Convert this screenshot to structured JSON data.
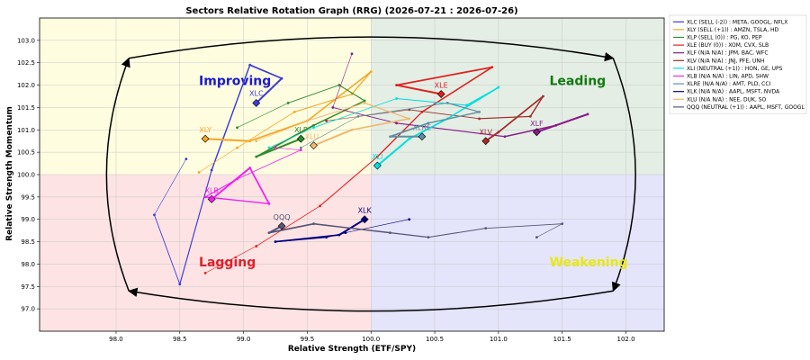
{
  "chart_data": {
    "type": "scatter",
    "title": "Sectors Relative Rotation Graph (RRG) (2026-07-21 : 2026-07-26)",
    "xlabel": "Relative Strength (ETF/SPY)",
    "ylabel": "Relative Strength Momentum",
    "xlim": [
      97.4,
      102.3
    ],
    "ylim": [
      96.5,
      103.5
    ],
    "x_ticks": [
      "98.0",
      "98.5",
      "99.0",
      "99.5",
      "100.0",
      "100.5",
      "101.0",
      "101.5",
      "102.0"
    ],
    "y_ticks": [
      "97.0",
      "97.5",
      "98.0",
      "98.5",
      "99.0",
      "99.5",
      "100.0",
      "100.5",
      "101.0",
      "101.5",
      "102.0",
      "102.5",
      "103.0"
    ],
    "grid": "on",
    "legend_position": "outside-right",
    "quadrants": [
      {
        "name": "Improving",
        "color": "#1a1acc",
        "bg": "#fefde0"
      },
      {
        "name": "Leading",
        "color": "#127a12",
        "bg": "#e4eee4"
      },
      {
        "name": "Lagging",
        "color": "#e0202a",
        "bg": "#fde3e3"
      },
      {
        "name": "Weakening",
        "color": "#e8e810",
        "bg": "#e4e4fb"
      }
    ],
    "series": [
      {
        "name": "XLC (SELL (-2)) : META, GOOGL, NFLX",
        "ticker": "XLC",
        "color": "#3b3bd9",
        "x": [
          98.55,
          98.3,
          98.5,
          98.75,
          99.05,
          99.3,
          99.1
        ],
        "y": [
          100.35,
          99.1,
          97.55,
          100.1,
          102.45,
          102.15,
          101.6
        ]
      },
      {
        "name": "XLY (SELL (+1)) : AMZN, TSLA, HD",
        "ticker": "XLY",
        "color": "#f5a623",
        "x": [
          98.65,
          98.95,
          99.4,
          99.85,
          100.0,
          99.5,
          99.05,
          98.7
        ],
        "y": [
          100.05,
          100.6,
          101.4,
          101.8,
          102.3,
          101.2,
          100.75,
          100.8
        ]
      },
      {
        "name": "XLP (SELL (0)) : PG, KO, PEP",
        "ticker": "XLP",
        "color": "#2e8b2e",
        "x": [
          98.95,
          99.35,
          99.75,
          99.95,
          99.55,
          99.1,
          99.45
        ],
        "y": [
          101.05,
          101.6,
          102.0,
          101.65,
          101.1,
          100.4,
          100.8
        ]
      },
      {
        "name": "XLE (BUY (0)) : XOM, CVX, SLB",
        "ticker": "XLE",
        "color": "#e02020",
        "x": [
          98.7,
          99.1,
          99.6,
          100.05,
          100.4,
          100.95,
          100.2,
          100.55
        ],
        "y": [
          97.8,
          98.4,
          99.3,
          100.4,
          101.4,
          102.4,
          102.0,
          101.8
        ]
      },
      {
        "name": "XLF (N/A N/A) : JPM, BAC, WFC",
        "ticker": "XLF",
        "color": "#8a1a8a",
        "x": [
          99.85,
          99.7,
          100.2,
          101.05,
          101.45,
          101.7,
          101.3
        ],
        "y": [
          102.7,
          101.5,
          101.15,
          100.85,
          101.1,
          101.35,
          100.95
        ]
      },
      {
        "name": "XLV (N/A N/A) : JNJ, PFE, UNH",
        "ticker": "XLV",
        "color": "#a52a2a",
        "x": [
          99.65,
          100.3,
          100.85,
          101.25,
          101.35,
          101.0,
          100.9
        ],
        "y": [
          101.2,
          101.45,
          101.25,
          101.3,
          101.75,
          100.95,
          100.75
        ]
      },
      {
        "name": "XLI (NEUTRAL (+1)) : HON, GE, UPS",
        "ticker": "XLI",
        "color": "#00dede",
        "x": [
          99.2,
          99.55,
          100.2,
          100.75,
          101.0,
          100.6,
          100.3,
          100.05
        ],
        "y": [
          100.6,
          101.05,
          101.7,
          101.55,
          101.95,
          101.25,
          100.8,
          100.2
        ]
      },
      {
        "name": "XLB (N/A N/A) : LIN, APD, SHW",
        "ticker": "XLB",
        "color": "#ee22ee",
        "x": [
          99.25,
          99.45,
          98.95,
          98.7,
          99.2,
          99.05,
          98.75
        ],
        "y": [
          100.6,
          100.55,
          99.9,
          99.5,
          99.35,
          100.15,
          99.45
        ]
      },
      {
        "name": "XLRE (N/A N/A) : AMT, PLD, CCI",
        "ticker": "XLRE",
        "color": "#5f8fa0",
        "x": [
          99.45,
          99.9,
          100.6,
          100.85,
          100.45,
          100.15,
          100.4
        ],
        "y": [
          100.6,
          101.3,
          101.6,
          101.4,
          101.15,
          100.85,
          100.85
        ]
      },
      {
        "name": "XLK (N/A N/A) : AAPL, MSFT, NVDA",
        "ticker": "XLK",
        "color": "#000080",
        "x": [
          100.3,
          99.8,
          99.65,
          99.25,
          99.75,
          99.95
        ],
        "y": [
          99.0,
          98.7,
          98.6,
          98.5,
          98.65,
          99.0
        ]
      },
      {
        "name": "XLU (N/A N/A) : NEE, DUK, SO",
        "ticker": "XLU",
        "color": "#f0b870",
        "x": [
          99.1,
          99.5,
          99.95,
          100.3,
          99.85,
          99.55
        ],
        "y": [
          100.75,
          101.2,
          101.6,
          101.25,
          101.0,
          100.65
        ]
      },
      {
        "name": "QQQ (NEUTRAL (+1)) : AAPL, MSFT, GOOGL",
        "ticker": "QQQ",
        "color": "#555577",
        "x": [
          101.3,
          101.5,
          100.9,
          100.45,
          100.15,
          99.55,
          99.2,
          99.3
        ],
        "y": [
          98.6,
          98.9,
          98.8,
          98.6,
          98.7,
          98.9,
          98.7,
          98.85
        ]
      }
    ]
  }
}
